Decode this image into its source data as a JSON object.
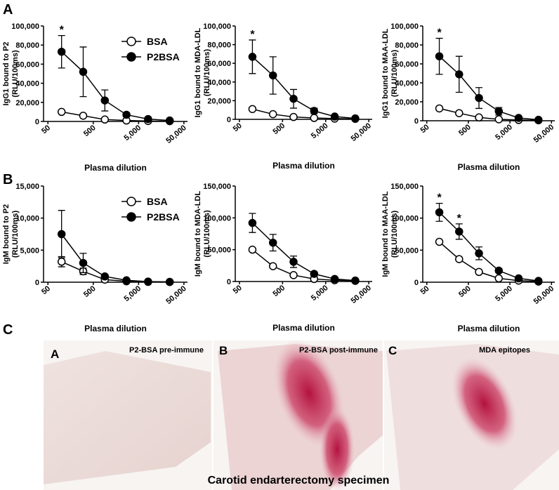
{
  "panel_labels": [
    "A",
    "B",
    "C"
  ],
  "chart_data": [
    {
      "type": "line",
      "log_x": true,
      "legend": true,
      "ylabel": [
        "IgG1 bound to P2",
        "(RLU/100ms)"
      ],
      "xlabel": "Plasma dilution",
      "x": [
        100,
        300,
        900,
        2700,
        8100,
        24300
      ],
      "xlim": [
        40,
        60000
      ],
      "xticks": [
        50,
        500,
        {
          "value": 5000,
          "label": "5,000"
        },
        {
          "value": 50000,
          "label": "50,000"
        }
      ],
      "ylim": [
        0,
        100000
      ],
      "yticks": [
        0,
        {
          "value": 20000,
          "label": "20,000"
        },
        {
          "value": 40000,
          "label": "40,000"
        },
        {
          "value": 60000,
          "label": "60,000"
        },
        {
          "value": 80000,
          "label": "80,000"
        },
        {
          "value": 100000,
          "label": "100,000"
        }
      ],
      "series": [
        {
          "name": "BSA",
          "color": "#000000",
          "fill": "#ffffff",
          "values": [
            10000,
            6000,
            2000,
            1000,
            500,
            300
          ],
          "errors": [
            1000,
            800,
            400,
            200,
            100,
            100
          ]
        },
        {
          "name": "P2BSA",
          "color": "#000000",
          "fill": "#000000",
          "values": [
            73000,
            52000,
            22000,
            7000,
            2500,
            1000
          ],
          "errors": [
            17000,
            26000,
            11000,
            2000,
            1000,
            500
          ]
        }
      ],
      "annotations": [
        {
          "text": "*",
          "x": 100
        }
      ]
    },
    {
      "type": "line",
      "log_x": true,
      "legend": false,
      "ylabel": [
        "IgG1 bound to MDA-LDL",
        "(RLU/100ms)"
      ],
      "xlabel": "Plasma dilution",
      "x": [
        100,
        300,
        900,
        2700,
        8100,
        24300
      ],
      "xlim": [
        40,
        60000
      ],
      "xticks": [
        50,
        500,
        {
          "value": 5000,
          "label": "5,000"
        },
        {
          "value": 50000,
          "label": "50,000"
        }
      ],
      "ylim": [
        0,
        100000
      ],
      "yticks": [
        0,
        {
          "value": 20000,
          "label": "20,000"
        },
        {
          "value": 40000,
          "label": "40,000"
        },
        {
          "value": 60000,
          "label": "60,000"
        },
        {
          "value": 80000,
          "label": "80,000"
        },
        {
          "value": 100000,
          "label": "100,000"
        }
      ],
      "series": [
        {
          "name": "BSA",
          "color": "#000000",
          "fill": "#ffffff",
          "values": [
            11000,
            5500,
            2500,
            1500,
            800,
            500
          ],
          "errors": [
            1000,
            800,
            400,
            200,
            100,
            100
          ]
        },
        {
          "name": "P2BSA",
          "color": "#000000",
          "fill": "#000000",
          "values": [
            67000,
            47000,
            22000,
            9000,
            3000,
            1000
          ],
          "errors": [
            18000,
            20000,
            10000,
            3000,
            1000,
            500
          ]
        }
      ],
      "annotations": [
        {
          "text": "*",
          "x": 100
        }
      ]
    },
    {
      "type": "line",
      "log_x": true,
      "legend": false,
      "ylabel": [
        "IgG1 bound to MAA-LDL",
        "(RLU/100ms)"
      ],
      "xlabel": "Plasma dilution",
      "x": [
        100,
        300,
        900,
        2700,
        8100,
        24300
      ],
      "xlim": [
        40,
        60000
      ],
      "xticks": [
        50,
        500,
        {
          "value": 5000,
          "label": "5,000"
        },
        {
          "value": 50000,
          "label": "50,000"
        }
      ],
      "ylim": [
        0,
        100000
      ],
      "yticks": [
        0,
        {
          "value": 20000,
          "label": "20,000"
        },
        {
          "value": 40000,
          "label": "40,000"
        },
        {
          "value": 60000,
          "label": "60,000"
        },
        {
          "value": 80000,
          "label": "80,000"
        },
        {
          "value": 100000,
          "label": "100,000"
        }
      ],
      "series": [
        {
          "name": "BSA",
          "color": "#000000",
          "fill": "#ffffff",
          "values": [
            13000,
            8000,
            3500,
            1500,
            800,
            500
          ],
          "errors": [
            1000,
            800,
            400,
            200,
            100,
            100
          ]
        },
        {
          "name": "P2BSA",
          "color": "#000000",
          "fill": "#000000",
          "values": [
            68000,
            49000,
            24000,
            10000,
            3000,
            1000
          ],
          "errors": [
            19000,
            19000,
            11000,
            4000,
            1000,
            500
          ]
        }
      ],
      "annotations": [
        {
          "text": "*",
          "x": 100
        }
      ]
    },
    {
      "type": "line",
      "log_x": true,
      "legend": true,
      "ylabel": [
        "IgM bound to P2",
        "(RLU/100ms)"
      ],
      "xlabel": "Plasma dilution",
      "x": [
        100,
        300,
        900,
        2700,
        8100,
        24300
      ],
      "xlim": [
        40,
        60000
      ],
      "xticks": [
        50,
        500,
        {
          "value": 5000,
          "label": "5,000"
        },
        {
          "value": 50000,
          "label": "50,000"
        }
      ],
      "ylim": [
        0,
        15000
      ],
      "yticks": [
        0,
        {
          "value": 5000,
          "label": "5,000"
        },
        {
          "value": 10000,
          "label": "10,000"
        },
        {
          "value": 15000,
          "label": "15,000"
        }
      ],
      "series": [
        {
          "name": "BSA",
          "color": "#000000",
          "fill": "#ffffff",
          "values": [
            3200,
            1700,
            400,
            150,
            50,
            30
          ],
          "errors": [
            800,
            500,
            200,
            100,
            50,
            20
          ]
        },
        {
          "name": "P2BSA",
          "color": "#000000",
          "fill": "#000000",
          "values": [
            7500,
            3000,
            900,
            300,
            100,
            50
          ],
          "errors": [
            3700,
            1500,
            300,
            150,
            50,
            20
          ]
        }
      ],
      "annotations": []
    },
    {
      "type": "line",
      "log_x": true,
      "legend": false,
      "ylabel": [
        "IgM bound to MDA-LDL",
        "(RLU/100ms)"
      ],
      "xlabel": "Plasma dilution",
      "x": [
        100,
        300,
        900,
        2700,
        8100,
        24300
      ],
      "xlim": [
        40,
        60000
      ],
      "xticks": [
        50,
        500,
        {
          "value": 5000,
          "label": "5,000"
        },
        {
          "value": 50000,
          "label": "50,000"
        }
      ],
      "ylim": [
        0,
        150000
      ],
      "yticks": [
        0,
        {
          "value": 50000,
          "label": "50,000"
        },
        {
          "value": 100000,
          "label": "100,000"
        },
        {
          "value": 150000,
          "label": "150,000"
        }
      ],
      "series": [
        {
          "name": "BSA",
          "color": "#000000",
          "fill": "#ffffff",
          "values": [
            50000,
            24000,
            10000,
            4000,
            2000,
            1000
          ],
          "errors": [
            2000,
            2000,
            1000,
            500,
            300,
            200
          ]
        },
        {
          "name": "P2BSA",
          "color": "#000000",
          "fill": "#000000",
          "values": [
            92000,
            61000,
            31000,
            12000,
            4000,
            1500
          ],
          "errors": [
            15000,
            13000,
            9000,
            3000,
            1500,
            500
          ]
        }
      ],
      "annotations": []
    },
    {
      "type": "line",
      "log_x": true,
      "legend": false,
      "ylabel": [
        "IgM bound to MAA-LDL",
        "(RLU/100ms)"
      ],
      "xlabel": "Plasma dilution",
      "x": [
        100,
        300,
        900,
        2700,
        8100,
        24300
      ],
      "xlim": [
        40,
        60000
      ],
      "xticks": [
        50,
        500,
        {
          "value": 5000,
          "label": "5,000"
        },
        {
          "value": 50000,
          "label": "50,000"
        }
      ],
      "ylim": [
        0,
        150000
      ],
      "yticks": [
        0,
        {
          "value": 50000,
          "label": "50,000"
        },
        {
          "value": 100000,
          "label": "100,000"
        },
        {
          "value": 150000,
          "label": "150,000"
        }
      ],
      "series": [
        {
          "name": "BSA",
          "color": "#000000",
          "fill": "#ffffff",
          "values": [
            63000,
            36000,
            16000,
            6000,
            2500,
            1000
          ],
          "errors": [
            2000,
            2000,
            1000,
            500,
            300,
            200
          ]
        },
        {
          "name": "P2BSA",
          "color": "#000000",
          "fill": "#000000",
          "values": [
            109000,
            79000,
            45000,
            18000,
            6000,
            2000
          ],
          "errors": [
            14000,
            12000,
            10000,
            3000,
            1500,
            500
          ]
        }
      ],
      "annotations": [
        {
          "text": "*",
          "x": 100
        },
        {
          "text": "*",
          "x": 300
        }
      ]
    }
  ],
  "histology": {
    "panels": [
      {
        "letter": "A",
        "label": "P2-BSA pre-immune"
      },
      {
        "letter": "B",
        "label": "P2-BSA post-immune"
      },
      {
        "letter": "C",
        "label": "MDA epitopes"
      }
    ],
    "caption": "Carotid endarterectomy specimen"
  }
}
